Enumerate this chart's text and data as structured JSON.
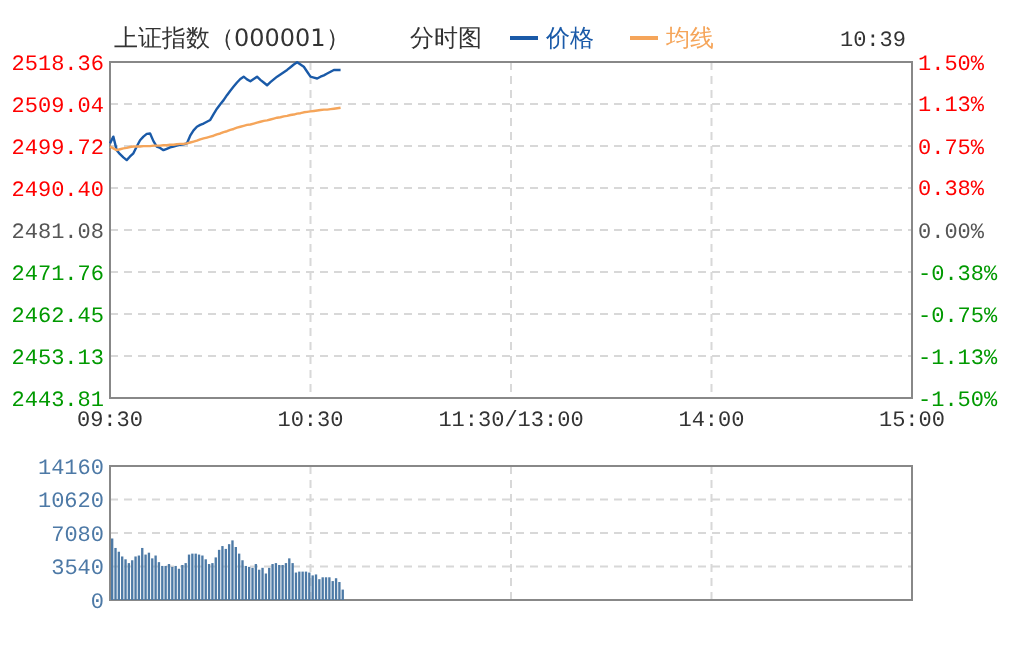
{
  "chart_data": [
    {
      "type": "line",
      "title": "上证指数（000001）",
      "subtitle": "分时图",
      "annotations": [
        "10:39"
      ],
      "legend": "top",
      "grid": true,
      "line_style": "solid",
      "marker": "none",
      "categories": [
        "09:30",
        null,
        null,
        null,
        null,
        null,
        null,
        null,
        null,
        null,
        null,
        null,
        null,
        null,
        null,
        null,
        null,
        null,
        null,
        null,
        null,
        null,
        null,
        null,
        null,
        null,
        null,
        null,
        null,
        null,
        null,
        null,
        null,
        null,
        null,
        null,
        null,
        null,
        null,
        null,
        null,
        null,
        null,
        null,
        null,
        null,
        null,
        null,
        null,
        null,
        null,
        null,
        null,
        null,
        null,
        null,
        null,
        null,
        null,
        null,
        "10:30",
        null,
        null,
        null,
        null,
        null,
        null,
        null,
        null,
        null,
        null,
        null,
        null,
        null,
        null,
        null,
        null,
        null,
        null,
        null,
        null,
        null,
        null,
        null,
        null,
        null,
        null,
        null,
        null,
        null,
        null,
        null,
        null,
        null,
        null,
        null,
        null,
        null,
        null,
        null,
        null,
        null,
        null,
        null,
        null,
        null,
        null,
        null,
        null,
        null,
        null,
        null,
        null,
        null,
        null,
        null,
        null,
        null,
        null,
        null,
        "11:30/13:00",
        null,
        null,
        null,
        null,
        null,
        null,
        null,
        null,
        null,
        null,
        null,
        null,
        null,
        null,
        null,
        null,
        null,
        null,
        null,
        null,
        null,
        null,
        null,
        null,
        null,
        null,
        null,
        null,
        null,
        null,
        null,
        null,
        null,
        null,
        null,
        null,
        null,
        null,
        null,
        null,
        null,
        null,
        null,
        null,
        null,
        null,
        null,
        null,
        null,
        null,
        null,
        null,
        null,
        null,
        null,
        null,
        null,
        null,
        null,
        "14:00",
        null,
        null,
        null,
        null,
        null,
        null,
        null,
        null,
        null,
        null,
        null,
        null,
        null,
        null,
        null,
        null,
        null,
        null,
        null,
        null,
        null,
        null,
        null,
        null,
        null,
        null,
        null,
        null,
        null,
        null,
        null,
        null,
        null,
        null,
        null,
        null,
        null,
        null,
        null,
        null,
        null,
        null,
        null,
        null,
        null,
        null,
        null,
        null,
        null,
        null,
        null,
        null,
        null,
        null,
        null,
        null,
        null,
        null,
        null,
        "15:00"
      ],
      "ylim": [
        2443.81,
        2518.36
      ],
      "yticks": [
        {
          "value": 2443.81,
          "label": "2443.81"
        },
        {
          "value": 2453.13,
          "label": "2453.13"
        },
        {
          "value": 2462.45,
          "label": "2462.45"
        },
        {
          "value": 2471.76,
          "label": "2471.76"
        },
        {
          "value": 2481.08,
          "label": "2481.08"
        },
        {
          "value": 2490.4,
          "label": "2490.40"
        },
        {
          "value": 2499.72,
          "label": "2499.72"
        },
        {
          "value": 2509.04,
          "label": "2509.04"
        },
        {
          "value": 2518.36,
          "label": "2518.36"
        }
      ],
      "y2lim": [
        -1.5,
        1.5
      ],
      "y2ticks": [
        {
          "value": -1.5,
          "label": "-1.50%"
        },
        {
          "value": -1.13,
          "label": "-1.13%"
        },
        {
          "value": -0.75,
          "label": "-0.75%"
        },
        {
          "value": -0.38,
          "label": "-0.38%"
        },
        {
          "value": 0,
          "label": "0.00%"
        },
        {
          "value": 0.38,
          "label": "0.38%"
        },
        {
          "value": 0.75,
          "label": "0.75%"
        },
        {
          "value": 1.13,
          "label": "1.13%"
        },
        {
          "value": 1.5,
          "label": "1.50%"
        }
      ],
      "series": [
        {
          "name": "价格",
          "color": "#1a5aa8",
          "values": [
            2500.3,
            2501.8,
            2498.8,
            2497.9,
            2497.2,
            2496.6,
            2497.4,
            2498.1,
            2499.6,
            2501.0,
            2501.8,
            2502.4,
            2502.5,
            2500.8,
            2499.6,
            2499.3,
            2498.8,
            2499.1,
            2499.4,
            2499.6,
            2499.8,
            2500.0,
            2500.1,
            2500.3,
            2502.0,
            2503.2,
            2504.0,
            2504.4,
            2504.7,
            2505.1,
            2505.5,
            2506.8,
            2508.0,
            2509.0,
            2509.9,
            2511.0,
            2512.0,
            2512.9,
            2513.8,
            2514.6,
            2515.1,
            2514.5,
            2514.1,
            2514.6,
            2515.1,
            2514.4,
            2513.8,
            2513.2,
            2513.9,
            2514.5,
            2515.1,
            2515.6,
            2516.1,
            2516.6,
            2517.2,
            2517.8,
            2518.3,
            2517.8,
            2517.3,
            2516.2,
            2515.1,
            2514.9,
            2514.7,
            2515.1,
            2515.4,
            2515.8,
            2516.2,
            2516.6,
            2516.6,
            2516.6,
            null,
            null,
            null,
            null,
            null,
            null,
            null,
            null,
            null,
            null,
            null,
            null,
            null,
            null,
            null,
            null,
            null,
            null,
            null,
            null,
            null,
            null,
            null,
            null,
            null,
            null,
            null,
            null,
            null,
            null,
            null,
            null,
            null,
            null,
            null,
            null,
            null,
            null,
            null,
            null,
            null,
            null,
            null,
            null,
            null,
            null,
            null,
            null,
            null,
            null,
            null,
            null,
            null,
            null,
            null,
            null,
            null,
            null,
            null,
            null,
            null,
            null,
            null,
            null,
            null,
            null,
            null,
            null,
            null,
            null,
            null,
            null,
            null,
            null,
            null,
            null,
            null,
            null,
            null,
            null,
            null,
            null,
            null,
            null,
            null,
            null,
            null,
            null,
            null,
            null,
            null,
            null,
            null,
            null,
            null,
            null,
            null,
            null,
            null,
            null,
            null,
            null,
            null,
            null,
            null,
            null,
            null,
            null,
            null,
            null,
            null,
            null,
            null,
            null,
            null,
            null,
            null,
            null,
            null,
            null,
            null,
            null,
            null,
            null,
            null,
            null,
            null,
            null,
            null,
            null,
            null,
            null,
            null,
            null,
            null,
            null,
            null,
            null,
            null,
            null,
            null,
            null,
            null,
            null,
            null,
            null,
            null,
            null,
            null,
            null,
            null,
            null,
            null,
            null,
            null,
            null,
            null,
            null,
            null,
            null,
            null,
            null,
            null,
            null,
            null,
            null,
            null,
            null,
            null,
            null,
            null
          ]
        },
        {
          "name": "均线",
          "color": "#f5a55a",
          "values": [
            2499.6,
            2499.2,
            2498.8,
            2499.0,
            2499.2,
            2499.3,
            2499.5,
            2499.6,
            2499.6,
            2499.6,
            2499.7,
            2499.7,
            2499.7,
            2499.8,
            2499.8,
            2499.8,
            2499.9,
            2499.9,
            2500.0,
            2500.0,
            2500.1,
            2500.2,
            2500.2,
            2500.3,
            2500.5,
            2500.7,
            2500.9,
            2501.2,
            2501.4,
            2501.6,
            2501.8,
            2502.0,
            2502.3,
            2502.5,
            2502.8,
            2503.0,
            2503.3,
            2503.5,
            2503.8,
            2504.0,
            2504.2,
            2504.4,
            2504.5,
            2504.7,
            2504.9,
            2505.1,
            2505.3,
            2505.4,
            2505.6,
            2505.8,
            2506.0,
            2506.1,
            2506.3,
            2506.4,
            2506.6,
            2506.7,
            2506.9,
            2507.0,
            2507.2,
            2507.3,
            2507.4,
            2507.5,
            2507.6,
            2507.7,
            2507.8,
            2507.8,
            2507.9,
            2508.0,
            2508.1,
            2508.2,
            null,
            null,
            null,
            null,
            null,
            null,
            null,
            null,
            null,
            null,
            null,
            null,
            null,
            null,
            null,
            null,
            null,
            null,
            null,
            null,
            null,
            null,
            null,
            null,
            null,
            null,
            null,
            null,
            null,
            null,
            null,
            null,
            null,
            null,
            null,
            null,
            null,
            null,
            null,
            null,
            null,
            null,
            null,
            null,
            null,
            null,
            null,
            null,
            null,
            null,
            null,
            null,
            null,
            null,
            null,
            null,
            null,
            null,
            null,
            null,
            null,
            null,
            null,
            null,
            null,
            null,
            null,
            null,
            null,
            null,
            null,
            null,
            null,
            null,
            null,
            null,
            null,
            null,
            null,
            null,
            null,
            null,
            null,
            null,
            null,
            null,
            null,
            null,
            null,
            null,
            null,
            null,
            null,
            null,
            null,
            null,
            null,
            null,
            null,
            null,
            null,
            null,
            null,
            null,
            null,
            null,
            null,
            null,
            null,
            null,
            null,
            null,
            null,
            null,
            null,
            null,
            null,
            null,
            null,
            null,
            null,
            null,
            null,
            null,
            null,
            null,
            null,
            null,
            null,
            null,
            null,
            null,
            null,
            null,
            null,
            null,
            null,
            null,
            null,
            null,
            null,
            null,
            null,
            null,
            null,
            null,
            null,
            null,
            null,
            null,
            null,
            null,
            null,
            null,
            null,
            null,
            null,
            null,
            null,
            null,
            null,
            null,
            null,
            null,
            null,
            null,
            null,
            null,
            null,
            null,
            null
          ]
        }
      ]
    },
    {
      "type": "bar",
      "tick_labels": "y",
      "grid": true,
      "categories": [
        null,
        null,
        null,
        null,
        null,
        null,
        null,
        null,
        null,
        null,
        null,
        null,
        null,
        null,
        null,
        null,
        null,
        null,
        null,
        null,
        null,
        null,
        null,
        null,
        null,
        null,
        null,
        null,
        null,
        null,
        null,
        null,
        null,
        null,
        null,
        null,
        null,
        null,
        null,
        null,
        null,
        null,
        null,
        null,
        null,
        null,
        null,
        null,
        null,
        null,
        null,
        null,
        null,
        null,
        null,
        null,
        null,
        null,
        null,
        null,
        null,
        null,
        null,
        null,
        null,
        null,
        null,
        null,
        null,
        null,
        null,
        null,
        null,
        null,
        null,
        null,
        null,
        null,
        null,
        null,
        null,
        null,
        null,
        null,
        null,
        null,
        null,
        null,
        null,
        null,
        null,
        null,
        null,
        null,
        null,
        null,
        null,
        null,
        null,
        null,
        null,
        null,
        null,
        null,
        null,
        null,
        null,
        null,
        null,
        null,
        null,
        null,
        null,
        null,
        null,
        null,
        null,
        null,
        null,
        null,
        null,
        null,
        null,
        null,
        null,
        null,
        null,
        null,
        null,
        null,
        null,
        null,
        null,
        null,
        null,
        null,
        null,
        null,
        null,
        null,
        null,
        null,
        null,
        null,
        null,
        null,
        null,
        null,
        null,
        null,
        null,
        null,
        null,
        null,
        null,
        null,
        null,
        null,
        null,
        null,
        null,
        null,
        null,
        null,
        null,
        null,
        null,
        null,
        null,
        null,
        null,
        null,
        null,
        null,
        null,
        null,
        null,
        null,
        null,
        null,
        null,
        null,
        null,
        null,
        null,
        null,
        null,
        null,
        null,
        null,
        null,
        null,
        null,
        null,
        null,
        null,
        null,
        null,
        null,
        null,
        null,
        null,
        null,
        null,
        null,
        null,
        null,
        null,
        null,
        null,
        null,
        null,
        null,
        null,
        null,
        null,
        null,
        null,
        null,
        null,
        null,
        null,
        null,
        null,
        null,
        null,
        null,
        null,
        null,
        null,
        null,
        null,
        null,
        null,
        null,
        null,
        null,
        null,
        null,
        null,
        null
      ],
      "ylim": [
        0,
        14160
      ],
      "yticks": [
        0,
        3540,
        7080,
        10620,
        14160
      ],
      "color": "#4d7aa6",
      "values": [
        6500,
        5500,
        5100,
        4600,
        4300,
        3900,
        4200,
        4600,
        4700,
        5500,
        4800,
        5000,
        4400,
        4700,
        4000,
        3600,
        3600,
        3800,
        3500,
        3600,
        3300,
        3700,
        3900,
        4800,
        4900,
        4900,
        4800,
        4700,
        4300,
        3800,
        3900,
        4500,
        5300,
        5700,
        5400,
        5900,
        6300,
        5600,
        4900,
        4200,
        3600,
        3500,
        3400,
        3800,
        3200,
        3400,
        2800,
        3400,
        3800,
        3900,
        3700,
        3700,
        3900,
        4400,
        3900,
        2900,
        3000,
        3000,
        3000,
        2900,
        2600,
        2700,
        2200,
        2400,
        2400,
        2400,
        2000,
        2300,
        1900,
        1100,
        null,
        null,
        null,
        null,
        null,
        null,
        null,
        null,
        null,
        null,
        null,
        null,
        null,
        null,
        null,
        null,
        null,
        null,
        null,
        null,
        null,
        null,
        null,
        null,
        null,
        null,
        null,
        null,
        null,
        null,
        null,
        null,
        null,
        null,
        null,
        null,
        null,
        null,
        null,
        null,
        null,
        null,
        null,
        null,
        null,
        null,
        null,
        null,
        null,
        null,
        null,
        null,
        null,
        null,
        null,
        null,
        null,
        null,
        null,
        null,
        null,
        null,
        null,
        null,
        null,
        null,
        null,
        null,
        null,
        null,
        null,
        null,
        null,
        null,
        null,
        null,
        null,
        null,
        null,
        null,
        null,
        null,
        null,
        null,
        null,
        null,
        null,
        null,
        null,
        null,
        null,
        null,
        null,
        null,
        null,
        null,
        null,
        null,
        null,
        null,
        null,
        null,
        null,
        null,
        null,
        null,
        null,
        null,
        null,
        null,
        null,
        null,
        null,
        null,
        null,
        null,
        null,
        null,
        null,
        null,
        null,
        null,
        null,
        null,
        null,
        null,
        null,
        null,
        null,
        null,
        null,
        null,
        null,
        null,
        null,
        null,
        null,
        null,
        null,
        null,
        null,
        null,
        null,
        null,
        null,
        null,
        null,
        null,
        null,
        null,
        null,
        null,
        null,
        null,
        null,
        null,
        null,
        null,
        null,
        null,
        null,
        null,
        null,
        null,
        null,
        null,
        null,
        null,
        null,
        null,
        null
      ]
    }
  ]
}
